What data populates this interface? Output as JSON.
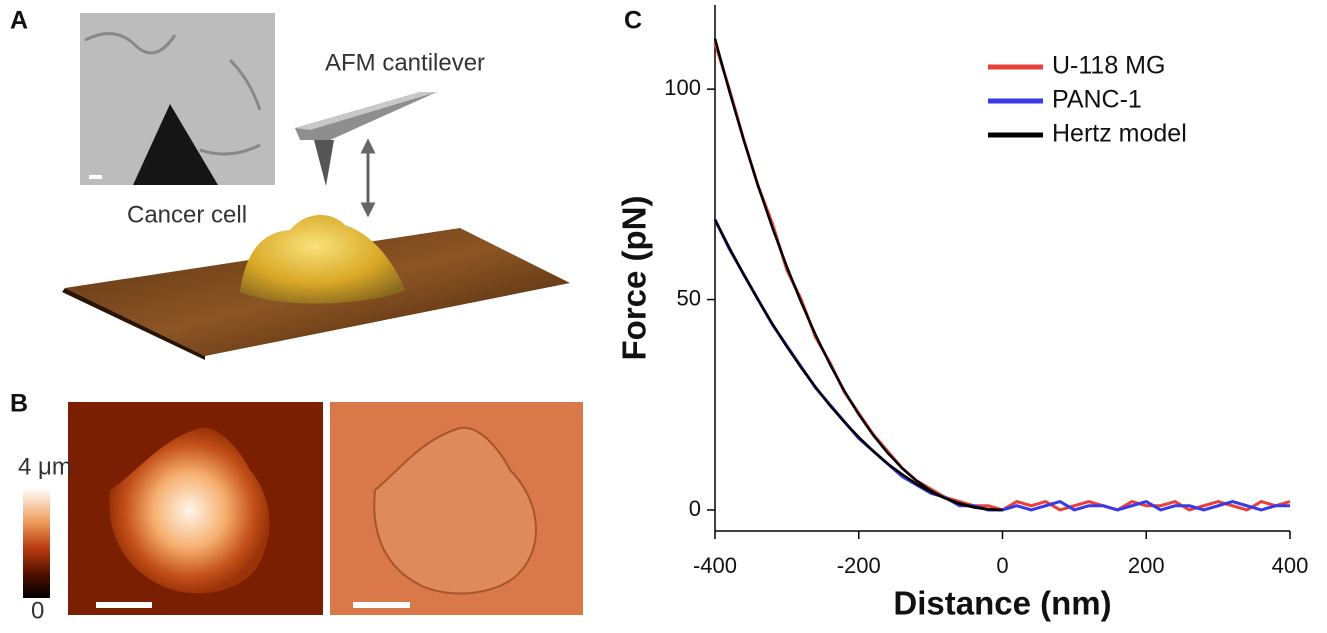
{
  "panels": {
    "a": {
      "letter": "A",
      "cantilever_label": "AFM cantilever",
      "cell_label": "Cancer cell"
    },
    "b": {
      "letter": "B",
      "colorbar_max": "4 μm",
      "colorbar_min": "0"
    },
    "c": {
      "letter": "C"
    }
  },
  "chart_data": {
    "type": "line",
    "x_label": "Distance (nm)",
    "y_label": "Force (pN)",
    "x": [
      -400,
      -380,
      -360,
      -340,
      -320,
      -300,
      -280,
      -260,
      -240,
      -220,
      -200,
      -180,
      -160,
      -140,
      -120,
      -100,
      -80,
      -60,
      -40,
      -20,
      0,
      20,
      40,
      60,
      80,
      100,
      120,
      140,
      160,
      180,
      200,
      220,
      240,
      260,
      280,
      300,
      320,
      340,
      360,
      380,
      400
    ],
    "xlim": [
      -400,
      400
    ],
    "xticks": [
      -400,
      -200,
      0,
      200,
      400
    ],
    "ylim": [
      -5,
      120
    ],
    "yticks": [
      0,
      50,
      100
    ],
    "legend": "upper right",
    "series": [
      {
        "name": "U-118 MG",
        "color": "#e8413c",
        "values": [
          111,
          100,
          88,
          77,
          68,
          57,
          50,
          41,
          35,
          28,
          23,
          18,
          14,
          10,
          7,
          5,
          3,
          2,
          1,
          1,
          0,
          2,
          1,
          2,
          0,
          1,
          2,
          1,
          0,
          2,
          1,
          1,
          2,
          0,
          1,
          2,
          1,
          0,
          2,
          1,
          2
        ]
      },
      {
        "name": "PANC-1",
        "color": "#3a3ae8",
        "values": [
          69,
          62,
          56,
          50,
          44,
          39,
          34,
          29,
          25,
          21,
          17,
          14,
          11,
          8,
          6,
          4,
          3,
          1,
          1,
          0,
          0,
          1,
          0,
          1,
          2,
          0,
          1,
          1,
          0,
          1,
          2,
          0,
          1,
          1,
          0,
          1,
          2,
          1,
          0,
          1,
          1
        ]
      },
      {
        "name": "Hertz model",
        "color": "#000000",
        "values": [
          112,
          99.5,
          87.9,
          77,
          67,
          57.8,
          49.3,
          41.6,
          34.6,
          28.3,
          22.7,
          17.8,
          13.6,
          10,
          7,
          4.6,
          2.8,
          1.4,
          0.6,
          0.1,
          0,
          null,
          null,
          null,
          null,
          null,
          null,
          null,
          null,
          null,
          null,
          null,
          null,
          null,
          null,
          null,
          null,
          null,
          null,
          null,
          null
        ]
      },
      {
        "color": "#000000",
        "values": [
          69,
          62.3,
          55.9,
          49.9,
          44.2,
          38.8,
          33.8,
          29.2,
          24.8,
          20.9,
          17.3,
          14,
          11,
          8.5,
          6.2,
          4.3,
          2.8,
          1.6,
          0.7,
          0.2,
          0,
          null,
          null,
          null,
          null,
          null,
          null,
          null,
          null,
          null,
          null,
          null,
          null,
          null,
          null,
          null,
          null,
          null,
          null,
          null,
          null
        ]
      }
    ]
  }
}
